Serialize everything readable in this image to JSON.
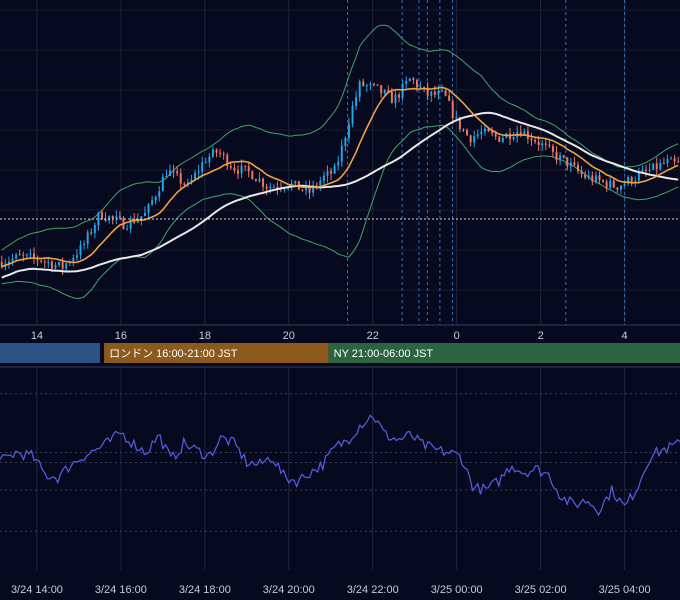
{
  "chart_data": [
    {
      "type": "candlestick",
      "title": "",
      "xlabel": "",
      "ylabel": "",
      "x_ticks": [
        "14",
        "16",
        "18",
        "20",
        "22",
        "0",
        "2",
        "4"
      ],
      "x_tick_hours": [
        14,
        16,
        18,
        20,
        22,
        24,
        26,
        28
      ],
      "x_range_hours": [
        13.12,
        29.32
      ],
      "y_range": [
        0,
        100
      ],
      "grid": true,
      "up_color": "#26a4e8",
      "down_color": "#f07860",
      "ohlc_keypoints": {
        "hours": [
          13.1,
          13.6,
          14.1,
          14.6,
          15.1,
          15.5,
          16.1,
          16.6,
          17.1,
          17.6,
          18.0,
          18.3,
          18.7,
          19.1,
          19.5,
          20.0,
          20.5,
          20.8,
          21.1,
          21.3,
          21.45,
          21.7,
          22.1,
          22.5,
          22.9,
          23.3,
          23.7,
          24.0,
          24.3,
          24.6,
          25.0,
          25.5,
          25.9,
          26.3,
          26.7,
          27.0,
          27.4,
          27.8,
          28.2,
          28.6,
          29.0,
          29.32
        ],
        "close": [
          14,
          16,
          15,
          12,
          20,
          32,
          28,
          32,
          48,
          42,
          52,
          55,
          49,
          47,
          42,
          43,
          40,
          45,
          48,
          58,
          68,
          80,
          78,
          74,
          82,
          76,
          76,
          66,
          60,
          62,
          60,
          63,
          59,
          54,
          50,
          46,
          44,
          42,
          45,
          48,
          51,
          50
        ]
      },
      "bollinger_band_halfwidth_keypoints": [
        6,
        8,
        10,
        12,
        14,
        12,
        13,
        14,
        10,
        9,
        9,
        10,
        12,
        14,
        16,
        18,
        20,
        22,
        26,
        30,
        34,
        36,
        30,
        22,
        16,
        14,
        14,
        15,
        16,
        17,
        14,
        10,
        7,
        6,
        5,
        5,
        5,
        5,
        6,
        7,
        8,
        8
      ],
      "moving_average_window_short": 12,
      "moving_average_window_long": 40,
      "ma_short_color": "#f0a040",
      "ma_long_color": "#e8e8e8",
      "bb_color": "#3fa56b",
      "reference_line": 30,
      "session_lines_hours": [
        21.4,
        22.7,
        23.1,
        23.3,
        23.6,
        23.9,
        26.6,
        28.0
      ],
      "sessions": [
        {
          "label": "",
          "start_hour": 13.12,
          "end_hour": 15.5,
          "color": "#2c5386"
        },
        {
          "label": "ロンドン 16:00-21:00 JST",
          "start_hour": 15.6,
          "end_hour": 20.95,
          "color": "#8c5a1c"
        },
        {
          "label": "NY 21:00-06:00 JST",
          "start_hour": 20.95,
          "end_hour": 29.32,
          "color": "#2a6440"
        }
      ]
    },
    {
      "type": "line",
      "title": "",
      "xlabel": "",
      "ylabel": "",
      "x_ticks": [
        "3/24 14:00",
        "3/24 16:00",
        "3/24 18:00",
        "3/24 20:00",
        "3/24 22:00",
        "3/25 00:00",
        "3/25 02:00",
        "3/25 04:00"
      ],
      "x_tick_hours": [
        14,
        16,
        18,
        20,
        22,
        24,
        26,
        28
      ],
      "y_range": [
        0,
        100
      ],
      "line_color": "#5560e6",
      "series": [
        {
          "hours": [
            13.1,
            13.5,
            13.9,
            14.2,
            14.5,
            14.8,
            15.1,
            15.4,
            15.7,
            16.0,
            16.3,
            16.6,
            16.9,
            17.2,
            17.5,
            17.8,
            18.1,
            18.4,
            18.7,
            19.0,
            19.3,
            19.6,
            19.9,
            20.2,
            20.5,
            20.8,
            21.1,
            21.4,
            21.7,
            22.0,
            22.3,
            22.6,
            22.9,
            23.2,
            23.5,
            23.8,
            24.1,
            24.4,
            24.7,
            25.0,
            25.3,
            25.6,
            25.9,
            26.2,
            26.5,
            26.8,
            27.1,
            27.4,
            27.7,
            28.0,
            28.3,
            28.6,
            28.9,
            29.32
          ],
          "values": [
            50,
            58,
            55,
            40,
            38,
            48,
            55,
            60,
            66,
            74,
            65,
            58,
            72,
            52,
            65,
            60,
            55,
            70,
            65,
            50,
            48,
            55,
            38,
            35,
            42,
            48,
            62,
            68,
            80,
            88,
            72,
            68,
            72,
            64,
            60,
            58,
            55,
            30,
            28,
            35,
            48,
            42,
            45,
            40,
            22,
            16,
            20,
            12,
            28,
            14,
            30,
            55,
            60,
            65
          ]
        }
      ]
    }
  ]
}
